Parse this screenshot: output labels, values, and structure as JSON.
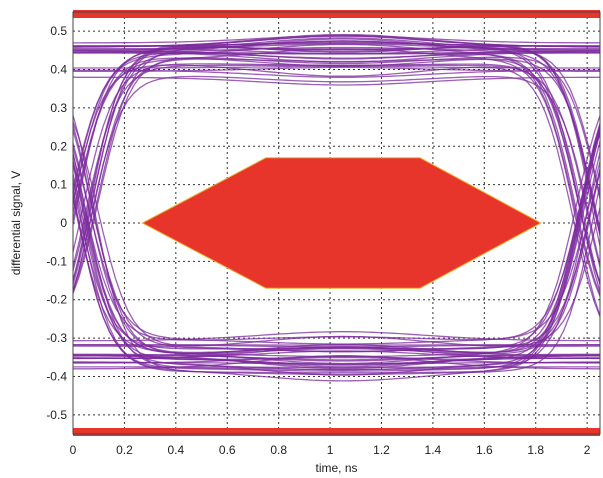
{
  "chart_data": {
    "type": "line",
    "subtype": "eye-diagram",
    "title": "",
    "xlabel": "time, ns",
    "ylabel": "differential signal, V",
    "xlim": [
      0,
      2.05
    ],
    "ylim": [
      -0.55,
      0.55
    ],
    "grid": true,
    "grid_style": "dotted",
    "x_ticks": [
      0,
      0.2,
      0.4,
      0.6,
      0.8,
      1,
      1.2,
      1.4,
      1.6,
      1.8,
      2
    ],
    "x_tick_labels": [
      "0",
      "0.2",
      "0.4",
      "0.6",
      "0.8",
      "1",
      "1.2",
      "1.4",
      "1.6",
      "1.8",
      "2"
    ],
    "y_ticks": [
      0.5,
      0.4,
      0.3,
      0.2,
      0.1,
      0,
      -0.1,
      -0.2,
      -0.3,
      -0.4,
      -0.5
    ],
    "y_tick_labels": [
      "0.5",
      "0.4",
      "0.3",
      "0.2",
      "0.1",
      "0",
      "-0.1",
      "-0.2",
      "-0.3",
      "-0.4",
      "-0.5"
    ],
    "eye_traces": {
      "color": "#7b2a9c",
      "high_level_band": [
        0.38,
        0.47
      ],
      "low_level_band": [
        -0.39,
        -0.3
      ],
      "crossing_x": [
        0.05,
        2.0
      ]
    },
    "eye_mask": {
      "color": "#e8352b",
      "polygon": [
        [
          0.27,
          0
        ],
        [
          0.75,
          0.17
        ],
        [
          1.35,
          0.17
        ],
        [
          1.82,
          0
        ],
        [
          1.35,
          -0.17
        ],
        [
          0.75,
          -0.17
        ]
      ]
    },
    "limit_lines": {
      "color": "#e8352b",
      "upper": 0.55,
      "lower": -0.55
    }
  }
}
